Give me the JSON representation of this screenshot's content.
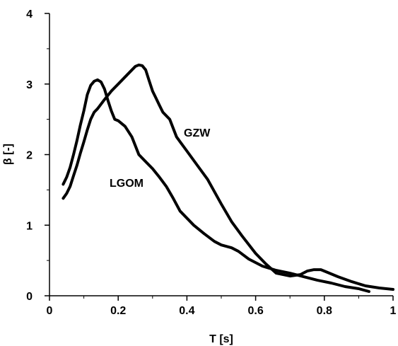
{
  "chart_data": {
    "type": "line",
    "title": "",
    "xlabel": "T [s]",
    "ylabel": "β [-]",
    "xlim": [
      0,
      1
    ],
    "ylim": [
      0,
      4
    ],
    "x_ticks": [
      0,
      0.2,
      0.4,
      0.6,
      0.8,
      1
    ],
    "x_tick_labels": [
      "0",
      "0.2",
      "0.4",
      "0.6",
      "0.8",
      "1"
    ],
    "y_ticks": [
      0,
      1,
      2,
      3,
      4
    ],
    "y_tick_labels": [
      "0",
      "1",
      "2",
      "3",
      "4"
    ],
    "grid": false,
    "legend": "none",
    "line_color": "#000000",
    "series": [
      {
        "name": "LGOM",
        "x": [
          0.04,
          0.05,
          0.06,
          0.07,
          0.08,
          0.09,
          0.1,
          0.11,
          0.12,
          0.13,
          0.14,
          0.15,
          0.16,
          0.17,
          0.18,
          0.19,
          0.2,
          0.22,
          0.24,
          0.26,
          0.28,
          0.3,
          0.32,
          0.34,
          0.36,
          0.38,
          0.4,
          0.42,
          0.45,
          0.48,
          0.5,
          0.53,
          0.55,
          0.58,
          0.62,
          0.66,
          0.7,
          0.74,
          0.78,
          0.82,
          0.86,
          0.9,
          0.93
        ],
        "y": [
          1.58,
          1.68,
          1.82,
          2.0,
          2.2,
          2.42,
          2.62,
          2.85,
          2.98,
          3.04,
          3.06,
          3.03,
          2.93,
          2.77,
          2.62,
          2.5,
          2.48,
          2.4,
          2.25,
          2.0,
          1.9,
          1.8,
          1.68,
          1.55,
          1.38,
          1.2,
          1.1,
          1.0,
          0.88,
          0.77,
          0.72,
          0.68,
          0.63,
          0.52,
          0.42,
          0.36,
          0.32,
          0.27,
          0.22,
          0.18,
          0.13,
          0.1,
          0.06
        ]
      },
      {
        "name": "GZW",
        "x": [
          0.04,
          0.05,
          0.06,
          0.07,
          0.08,
          0.09,
          0.1,
          0.11,
          0.12,
          0.13,
          0.14,
          0.16,
          0.18,
          0.2,
          0.22,
          0.24,
          0.25,
          0.26,
          0.27,
          0.28,
          0.29,
          0.3,
          0.31,
          0.32,
          0.33,
          0.35,
          0.37,
          0.4,
          0.43,
          0.46,
          0.5,
          0.53,
          0.56,
          0.6,
          0.63,
          0.66,
          0.7,
          0.73,
          0.75,
          0.77,
          0.79,
          0.81,
          0.84,
          0.88,
          0.92,
          0.96,
          1.0
        ],
        "y": [
          1.38,
          1.45,
          1.55,
          1.7,
          1.85,
          2.02,
          2.18,
          2.35,
          2.5,
          2.6,
          2.65,
          2.78,
          2.9,
          3.0,
          3.1,
          3.2,
          3.25,
          3.27,
          3.26,
          3.2,
          3.05,
          2.9,
          2.8,
          2.7,
          2.6,
          2.5,
          2.25,
          2.05,
          1.85,
          1.65,
          1.3,
          1.05,
          0.85,
          0.6,
          0.45,
          0.32,
          0.28,
          0.3,
          0.35,
          0.37,
          0.37,
          0.33,
          0.27,
          0.2,
          0.14,
          0.11,
          0.09
        ]
      }
    ]
  }
}
